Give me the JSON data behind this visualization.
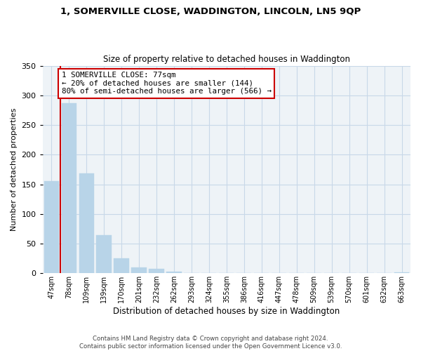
{
  "title": "1, SOMERVILLE CLOSE, WADDINGTON, LINCOLN, LN5 9QP",
  "subtitle": "Size of property relative to detached houses in Waddington",
  "xlabel": "Distribution of detached houses by size in Waddington",
  "ylabel": "Number of detached properties",
  "bar_labels": [
    "47sqm",
    "78sqm",
    "109sqm",
    "139sqm",
    "170sqm",
    "201sqm",
    "232sqm",
    "262sqm",
    "293sqm",
    "324sqm",
    "355sqm",
    "386sqm",
    "416sqm",
    "447sqm",
    "478sqm",
    "509sqm",
    "539sqm",
    "570sqm",
    "601sqm",
    "632sqm",
    "663sqm"
  ],
  "bar_values": [
    155,
    287,
    168,
    64,
    25,
    10,
    7,
    3,
    0,
    0,
    0,
    0,
    0,
    0,
    0,
    0,
    0,
    0,
    0,
    0,
    2
  ],
  "bar_color": "#b8d4e8",
  "annotation_line0": "1 SOMERVILLE CLOSE: 77sqm",
  "annotation_line1": "← 20% of detached houses are smaller (144)",
  "annotation_line2": "80% of semi-detached houses are larger (566) →",
  "annotation_box_color": "#ffffff",
  "annotation_border_color": "#cc0000",
  "ylim": [
    0,
    350
  ],
  "yticks": [
    0,
    50,
    100,
    150,
    200,
    250,
    300,
    350
  ],
  "grid_color": "#c8d8e8",
  "bg_color": "#eef3f7",
  "footer_line1": "Contains HM Land Registry data © Crown copyright and database right 2024.",
  "footer_line2": "Contains public sector information licensed under the Open Government Licence v3.0."
}
